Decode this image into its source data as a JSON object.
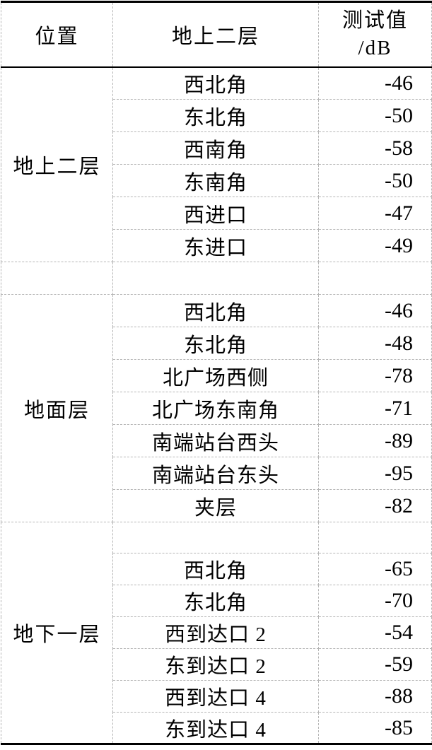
{
  "page": {
    "background": "#ffffff",
    "text_color": "#000000",
    "solid_border_color": "#000000",
    "dashed_grid_color": "#b5b5b5"
  },
  "table": {
    "header": {
      "col1": "位置",
      "col2": "地上二层",
      "col3_line1": "测试值",
      "col3_line2": "/dB"
    },
    "groups": [
      {
        "location": "地上二层",
        "rows": [
          {
            "point": "西北角",
            "value": "-46"
          },
          {
            "point": "东北角",
            "value": "-50"
          },
          {
            "point": "西南角",
            "value": "-58"
          },
          {
            "point": "东南角",
            "value": "-50"
          },
          {
            "point": "西进口",
            "value": "-47"
          },
          {
            "point": "东进口",
            "value": "-49"
          }
        ]
      },
      {
        "location": "地面层",
        "rows": [
          {
            "point": "西北角",
            "value": "-46"
          },
          {
            "point": "东北角",
            "value": "-48"
          },
          {
            "point": "北广场西侧",
            "value": "-78"
          },
          {
            "point": "北广场东南角",
            "value": "-71"
          },
          {
            "point": "南端站台西头",
            "value": "-89"
          },
          {
            "point": "南端站台东头",
            "value": "-95"
          },
          {
            "point": "夹层",
            "value": "-82"
          }
        ]
      },
      {
        "location": "地下一层",
        "rows": [
          {
            "point": "西北角",
            "value": "-65"
          },
          {
            "point": "东北角",
            "value": "-70"
          },
          {
            "point": "西到达口 2",
            "value": "-54"
          },
          {
            "point": "东到达口 2",
            "value": "-59"
          },
          {
            "point": "西到达口 4",
            "value": "-88"
          },
          {
            "point": "东到达口 4",
            "value": "-85"
          }
        ]
      }
    ]
  },
  "chart_data": {
    "type": "table",
    "title": "",
    "columns": [
      "位置",
      "地上二层",
      "测试值/dB"
    ],
    "rows": [
      [
        "地上二层",
        "西北角",
        -46
      ],
      [
        "地上二层",
        "东北角",
        -50
      ],
      [
        "地上二层",
        "西南角",
        -58
      ],
      [
        "地上二层",
        "东南角",
        -50
      ],
      [
        "地上二层",
        "西进口",
        -47
      ],
      [
        "地上二层",
        "东进口",
        -49
      ],
      [
        "地面层",
        "西北角",
        -46
      ],
      [
        "地面层",
        "东北角",
        -48
      ],
      [
        "地面层",
        "北广场西侧",
        -78
      ],
      [
        "地面层",
        "北广场东南角",
        -71
      ],
      [
        "地面层",
        "南端站台西头",
        -89
      ],
      [
        "地面层",
        "南端站台东头",
        -95
      ],
      [
        "地面层",
        "夹层",
        -82
      ],
      [
        "地下一层",
        "西北角",
        -65
      ],
      [
        "地下一层",
        "东北角",
        -70
      ],
      [
        "地下一层",
        "西到达口 2",
        -54
      ],
      [
        "地下一层",
        "东到达口 2",
        -59
      ],
      [
        "地下一层",
        "西到达口 4",
        -88
      ],
      [
        "地下一层",
        "东到达口 4",
        -85
      ]
    ]
  }
}
